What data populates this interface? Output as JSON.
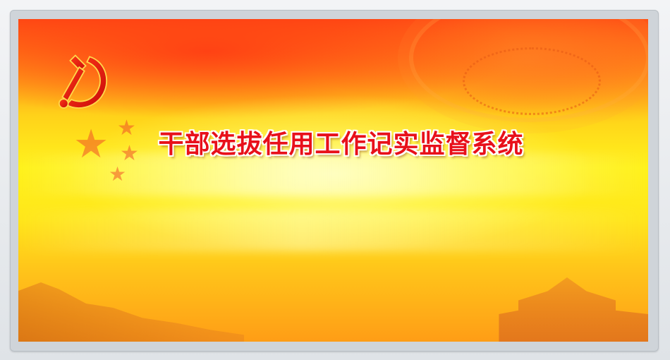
{
  "banner": {
    "title": "干部选拔任用工作记实监督系统",
    "emblem": "hammer-and-sickle-icon",
    "stars": "star-icon"
  },
  "colors": {
    "title_fill": "#e8101a",
    "title_outline": "#ffffff",
    "banner_top": "#ff4a14",
    "banner_mid": "#fff21c",
    "banner_bottom": "#ff9d16",
    "frame": "#cfd4d9"
  }
}
